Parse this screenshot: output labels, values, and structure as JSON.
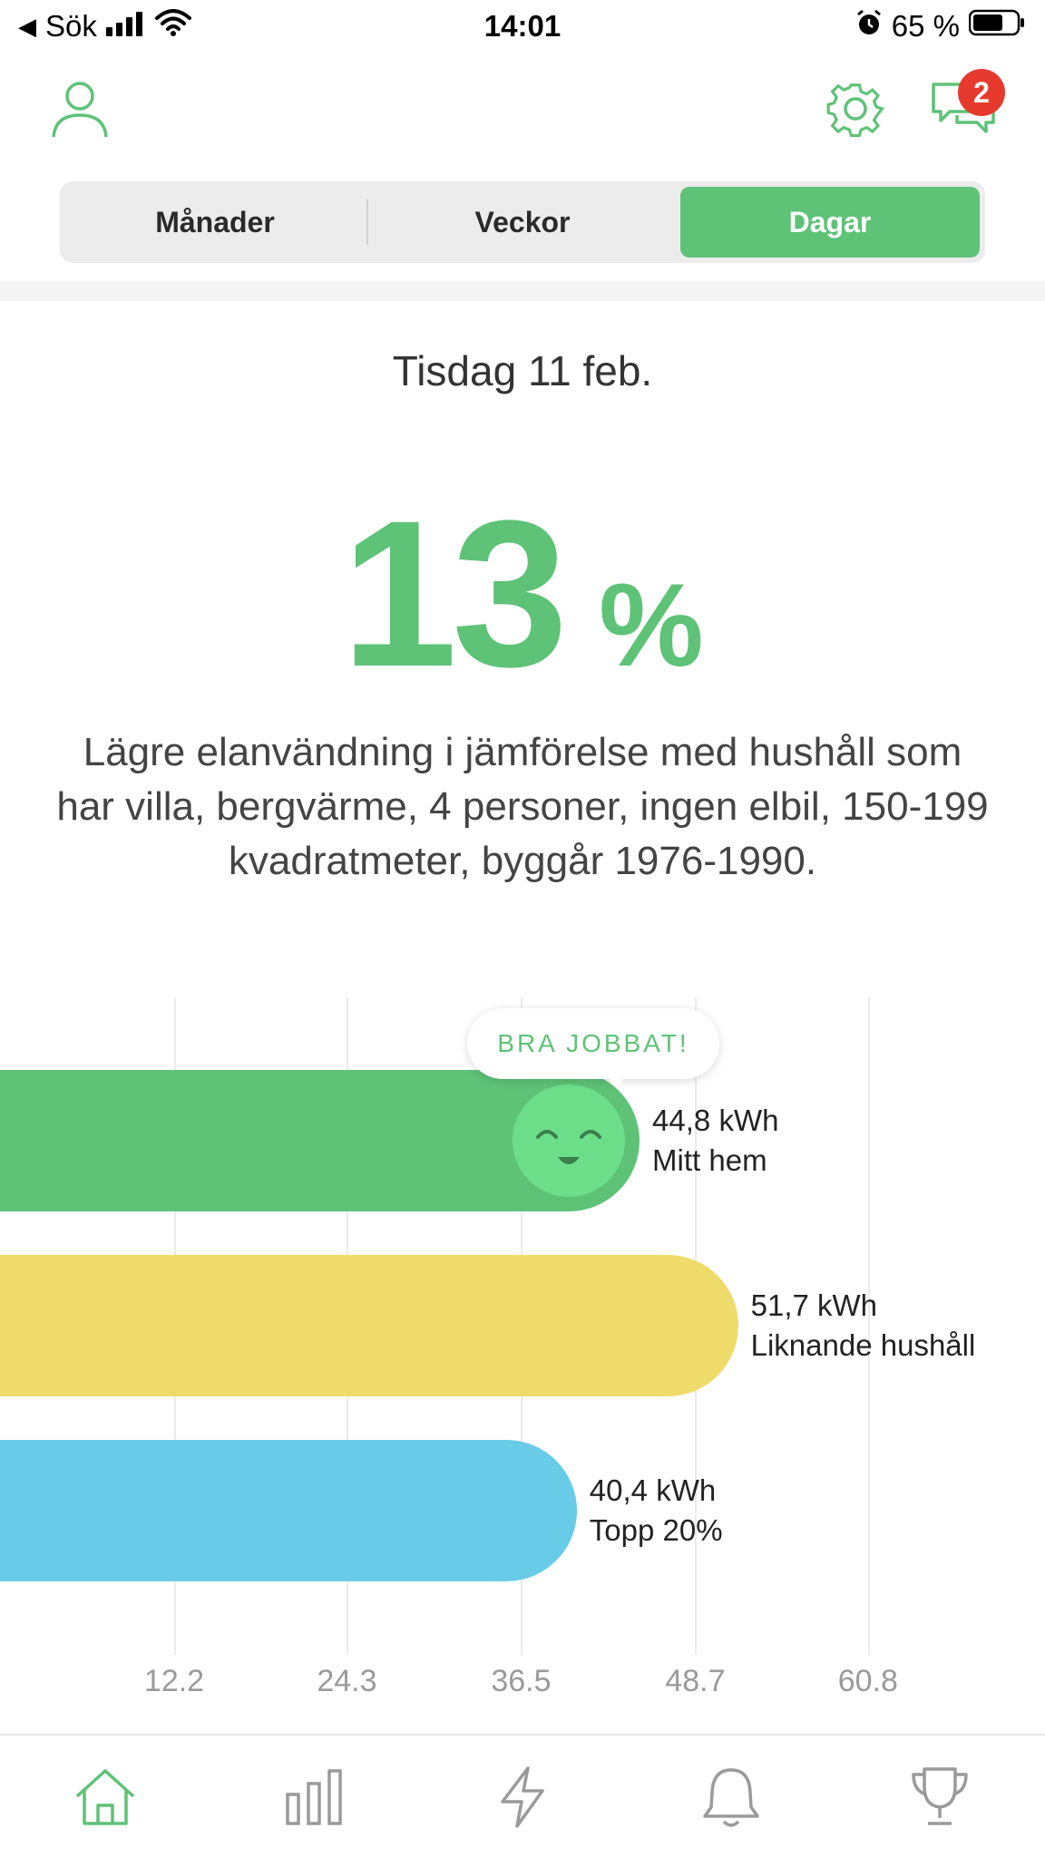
{
  "status_bar": {
    "back_label": "Sök",
    "time": "14:01",
    "battery": "65 %"
  },
  "header": {
    "messages_badge": "2"
  },
  "segments": [
    "Månader",
    "Veckor",
    "Dagar"
  ],
  "selected_segment": "Dagar",
  "summary": {
    "date": "Tisdag 11 feb.",
    "percent_value": "13",
    "percent_sign": "%",
    "description": "Lägre elanvändning i jämförelse med hushåll som har villa, bergvärme, 4 personer, ingen elbil, 150-199 kvadratmeter, byggår 1976-1990."
  },
  "chart_data": {
    "type": "bar",
    "orientation": "horizontal",
    "bubble_text": "BRA JOBBAT!",
    "x_ticks": [
      "12.2",
      "24.3",
      "36.5",
      "48.7",
      "60.8"
    ],
    "x_tick_values": [
      12.2,
      24.3,
      36.5,
      48.7,
      60.8
    ],
    "xlim": [
      0,
      73
    ],
    "bars": [
      {
        "value": 44.8,
        "value_label": "44,8 kWh",
        "name": "Mitt hem",
        "color": "#5ec277"
      },
      {
        "value": 51.7,
        "value_label": "51,7 kWh",
        "name": "Liknande hushåll",
        "color": "#eedb6a"
      },
      {
        "value": 40.4,
        "value_label": "40,4 kWh",
        "name": "Topp 20%",
        "color": "#68cbe8"
      }
    ]
  },
  "colors": {
    "accent": "#5ec277",
    "badge": "#e63a2e",
    "inactive_icon": "#9a9a9a"
  },
  "tab_bar": {
    "items": [
      "home-icon",
      "bar-chart-icon",
      "lightning-icon",
      "bell-icon",
      "trophy-icon"
    ],
    "active": "home-icon"
  }
}
